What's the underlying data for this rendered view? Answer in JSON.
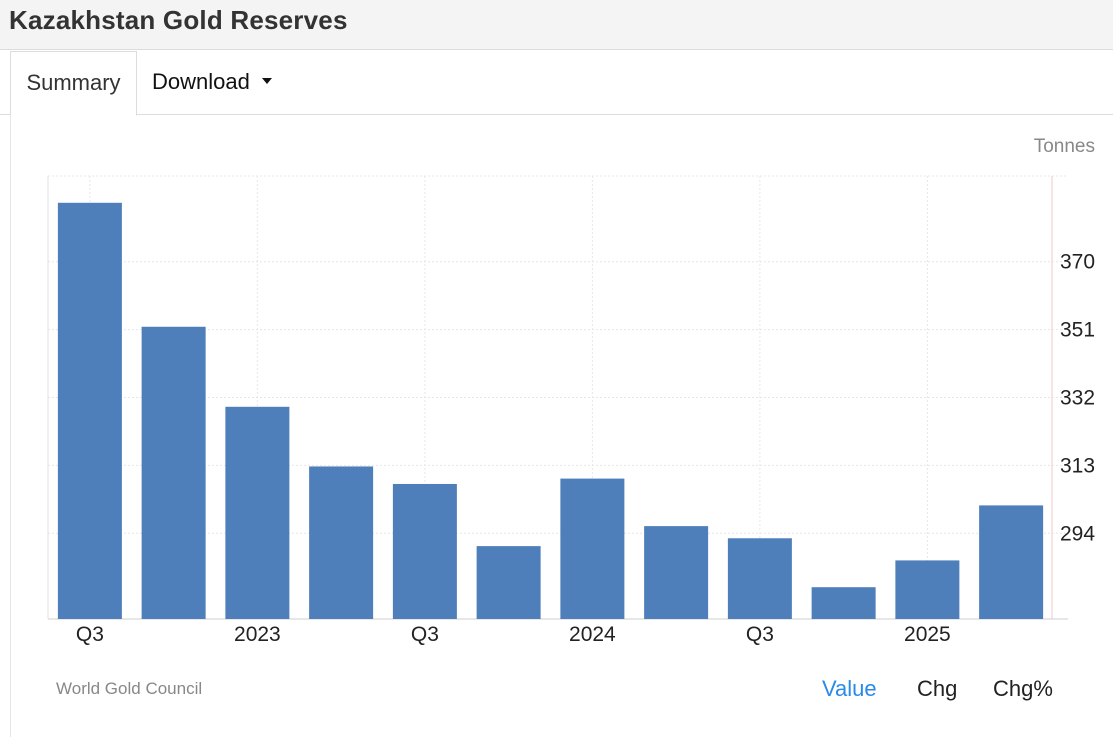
{
  "page": {
    "title": "Kazakhstan Gold Reserves"
  },
  "tabs": {
    "summary": "Summary",
    "download": "Download"
  },
  "chart_data": {
    "type": "bar",
    "unit": "Tonnes",
    "categories": [
      "Q3",
      "",
      "2023",
      "",
      "Q3",
      "",
      "2024",
      "",
      "Q3",
      "",
      "2025",
      ""
    ],
    "values": [
      386.5,
      351.8,
      329.4,
      312.7,
      307.8,
      290.4,
      309.3,
      296.0,
      292.6,
      278.9,
      286.4,
      301.8
    ],
    "yticks": [
      294,
      313,
      332,
      351,
      370
    ],
    "ylim": [
      270,
      394
    ],
    "grid": true,
    "color": "#4e7fbb"
  },
  "footer": {
    "source": "World Gold Council",
    "toggles": {
      "value": "Value",
      "chg": "Chg",
      "chg_pct": "Chg%"
    },
    "active_color": "#2a8ae8"
  }
}
